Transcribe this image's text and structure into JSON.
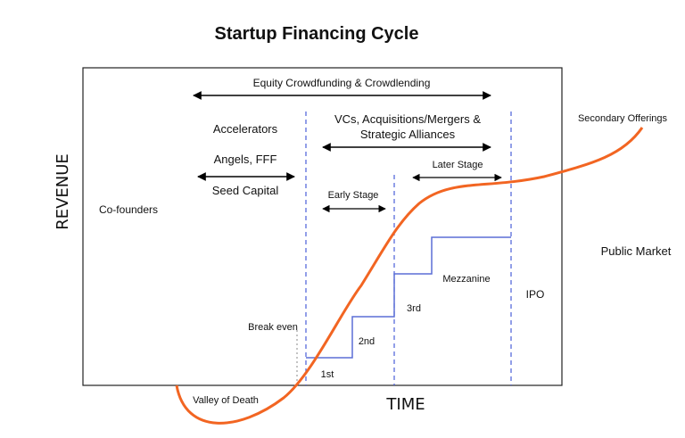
{
  "title": "Startup Financing Cycle",
  "axes": {
    "x_label": "TIME",
    "y_label": "REVENUE"
  },
  "labels": {
    "equity_crowdfunding": "Equity Crowdfunding & Crowdlending",
    "accelerators": "Accelerators",
    "angels_fff": "Angels, FFF",
    "seed_capital": "Seed Capital",
    "co_founders": "Co-founders",
    "vcs_line1": "VCs, Acquisitions/Mergers &",
    "vcs_line2": "Strategic Alliances",
    "early_stage": "Early Stage",
    "later_stage": "Later Stage",
    "mezzanine": "Mezzanine",
    "ipo": "IPO",
    "public_market": "Public Market",
    "secondary_offerings": "Secondary Offerings",
    "break_even": "Break even",
    "valley_of_death": "Valley of Death",
    "round_1st": "1st",
    "round_2nd": "2nd",
    "round_3rd": "3rd"
  },
  "colors": {
    "curve": "#f26522",
    "steps": "#5b6fd6",
    "dashed": "#4a5fd8",
    "frame": "#222222",
    "arrow": "#000000"
  }
}
